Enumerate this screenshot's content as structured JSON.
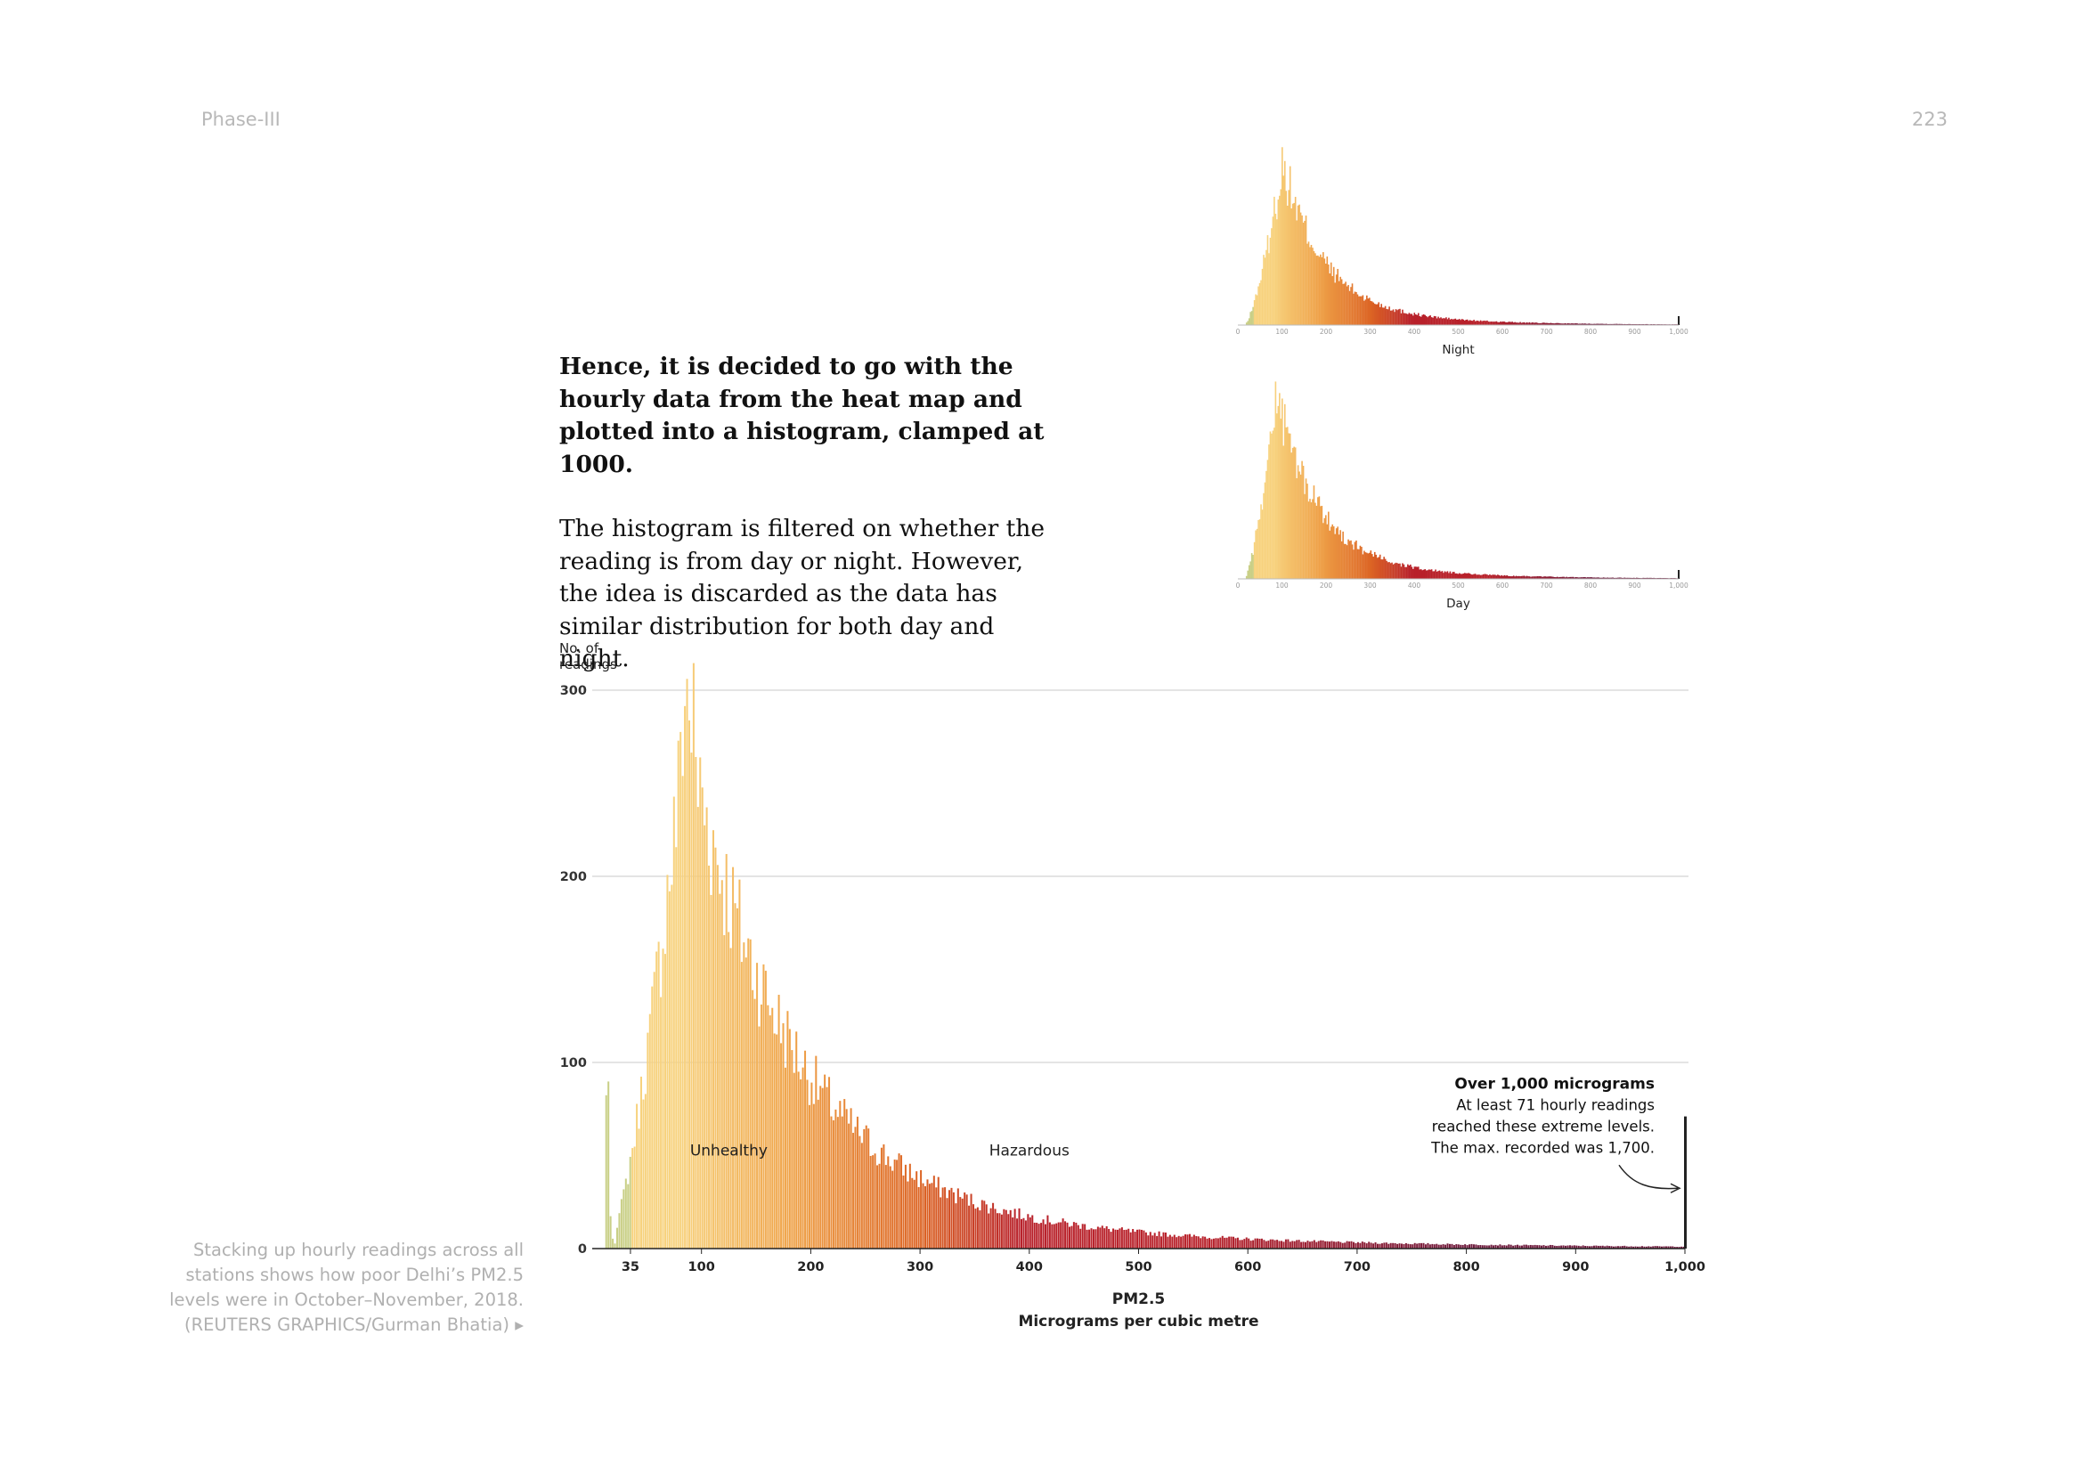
{
  "header": {
    "section": "Phase-III",
    "page_number": "223"
  },
  "text": {
    "lead": "Hence, it is decided to go with the hourly data from the heat map and plotted into a histogram, clamped at 1000.",
    "body": "The histogram is filtered on whether the reading is from day or night. However, the idea is discarded as the data has similar distribution for both day and night."
  },
  "caption": {
    "text": "Stacking up hourly readings across all stations shows how poor Delhi’s PM2.5 levels were in October–November, 2018. (REUTERS GRAPHICS/Gurman Bhatia) ▸"
  },
  "colors": {
    "good": "#c9cf86",
    "moderate": "#f7d27e",
    "unhealthy": "#efa349",
    "very_unhealthy": "#dc6424",
    "hazardous": "#b8212a",
    "extreme": "#6e1a3c",
    "over": "#222222"
  },
  "chart_data": [
    {
      "type": "bar",
      "id": "main",
      "ylabel": "No. of readings",
      "xlabel": "PM2.5",
      "xlabel_sub": "Micrograms per cubic metre",
      "xlim": [
        0,
        1000
      ],
      "ylim": [
        0,
        300
      ],
      "yticks": [
        "0",
        "100",
        "200",
        "300"
      ],
      "xticks": [
        {
          "v": 35,
          "label": "35"
        },
        {
          "v": 100,
          "label": "100"
        },
        {
          "v": 200,
          "label": "200"
        },
        {
          "v": 300,
          "label": "300"
        },
        {
          "v": 400,
          "label": "400"
        },
        {
          "v": 500,
          "label": "500"
        },
        {
          "v": 600,
          "label": "600"
        },
        {
          "v": 700,
          "label": "700"
        },
        {
          "v": 800,
          "label": "800"
        },
        {
          "v": 900,
          "label": "900"
        },
        {
          "v": 1000,
          "label": "1,000"
        }
      ],
      "bins": {
        "start": 0,
        "end": 1000,
        "width": 2
      },
      "distribution": {
        "peak_x": 85,
        "peak_y": 300,
        "max_y": 330
      },
      "category_labels": [
        {
          "label": "Unhealthy",
          "x": 125,
          "y": 52
        },
        {
          "label": "Hazardous",
          "x": 400,
          "y": 52
        }
      ],
      "overflow_bar": {
        "x": 1000,
        "value": 71
      },
      "annotation": {
        "title": "Over 1,000 micrograms",
        "lines": [
          "At least 71 hourly readings",
          "reached these extreme levels.",
          "The max. recorded was 1,700."
        ]
      },
      "grid": true
    },
    {
      "type": "bar",
      "id": "night",
      "xlabel": "Night",
      "xlim": [
        0,
        1000
      ],
      "xticks": [
        "0",
        "100",
        "200",
        "300",
        "400",
        "500",
        "600",
        "700",
        "800",
        "900",
        "1,000"
      ],
      "distribution": {
        "peak_x": 100
      }
    },
    {
      "type": "bar",
      "id": "day",
      "xlabel": "Day",
      "xlim": [
        0,
        1000
      ],
      "xticks": [
        "0",
        "100",
        "200",
        "300",
        "400",
        "500",
        "600",
        "700",
        "800",
        "900",
        "1,000"
      ],
      "distribution": {
        "peak_x": 85
      }
    }
  ]
}
